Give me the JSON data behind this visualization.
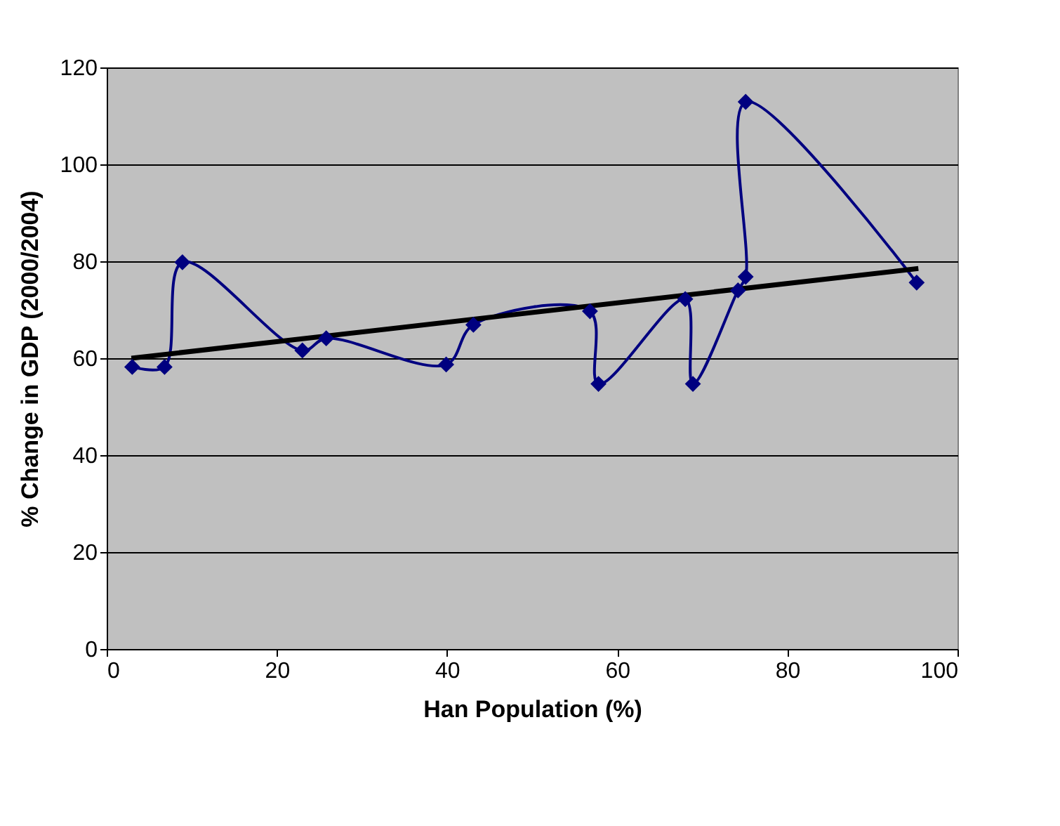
{
  "chart_data": {
    "type": "line",
    "xlabel": "Han Population (%)",
    "ylabel": "% Change in GDP (2000/2004)",
    "xlim": [
      0,
      100
    ],
    "xticks": [
      0,
      20,
      40,
      60,
      80,
      100
    ],
    "ylim": [
      0,
      120
    ],
    "yticks": [
      0,
      20,
      40,
      60,
      80,
      100,
      120
    ],
    "grid": "y",
    "marker": "diamond",
    "line_style": "solid",
    "series": [
      {
        "color": "#000080",
        "x": [
          3,
          6.8,
          8.9,
          23,
          25.8,
          39.9,
          43.1,
          56.8,
          57.8,
          68,
          68.9,
          74.2,
          75.1,
          75.1,
          95.2
        ],
        "values": [
          58.2,
          58.2,
          79.8,
          61.6,
          64.1,
          58.7,
          66.9,
          69.7,
          54.7,
          72.2,
          54.7,
          74,
          76.8,
          112.9,
          75.6
        ]
      },
      {
        "type": "line",
        "color": "#000000",
        "marker": "none",
        "x": [
          2.9,
          95.4
        ],
        "values": [
          60,
          78.5
        ]
      }
    ]
  }
}
